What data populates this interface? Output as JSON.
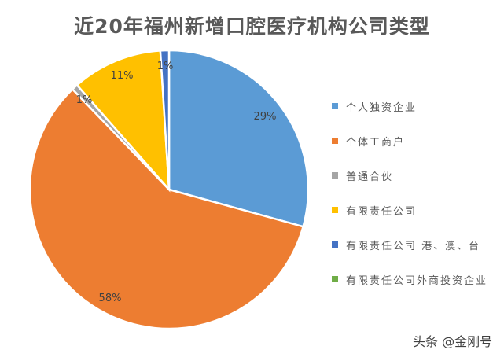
{
  "title": "近20年福州新增口腔医疗机构公司类型",
  "chart_data": {
    "type": "pie",
    "title": "近20年福州新增口腔医疗机构公司类型",
    "start_angle_deg": 0,
    "direction": "clockwise",
    "legend_position": "right",
    "categories": [
      "个人独资企业",
      "个体工商户",
      "普通合伙",
      "有限责任公司",
      "有限责任公司 港、澳、台",
      "有限责任公司外商投资企业"
    ],
    "values": [
      29,
      58,
      1,
      11,
      1,
      0
    ],
    "labels": [
      "29%",
      "58%",
      "1%",
      "11%",
      "1%",
      ""
    ],
    "colors": [
      "#5B9BD5",
      "#ED7D31",
      "#A5A5A5",
      "#FFC000",
      "#4472C4",
      "#70AD47"
    ]
  },
  "legend": {
    "items": [
      {
        "label": "个人独资企业",
        "color": "#5B9BD5"
      },
      {
        "label": "个体工商户",
        "color": "#ED7D31"
      },
      {
        "label": "普通合伙",
        "color": "#A5A5A5"
      },
      {
        "label": "有限责任公司",
        "color": "#FFC000"
      },
      {
        "label": "有限责任公司 港、澳、台",
        "color": "#4472C4"
      },
      {
        "label": "有限责任公司外商投资企业",
        "color": "#70AD47"
      }
    ]
  },
  "watermark": "头条 @金刚号"
}
